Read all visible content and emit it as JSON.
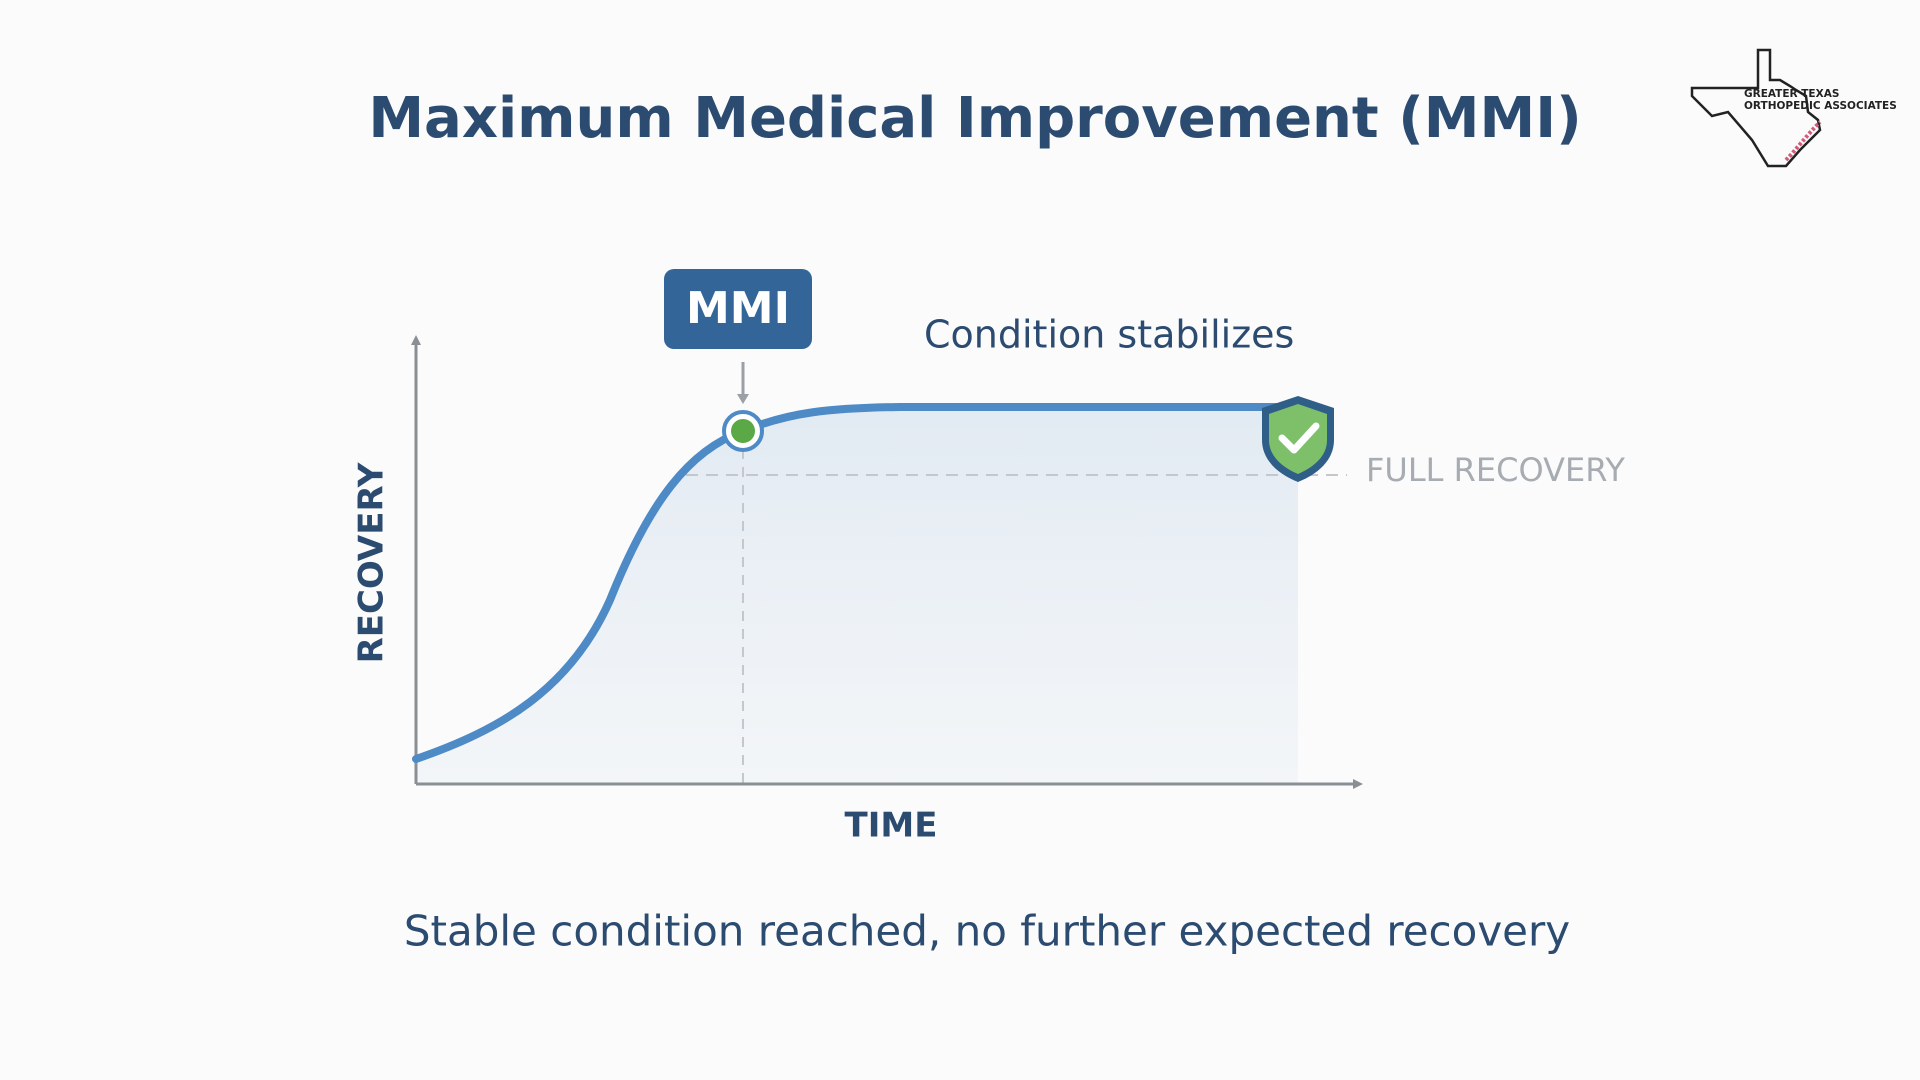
{
  "title": "Maximum Medical Improvement (MMI)",
  "logo": {
    "line1": "GREATER TEXAS",
    "line2": "ORTHOPEDIC ASSOCIATES"
  },
  "diagram": {
    "marker_label": "MMI",
    "annotation": "Condition stabilizes",
    "reference_label": "FULL RECOVERY",
    "y_axis_label": "RECOVERY",
    "x_axis_label": "TIME"
  },
  "caption": "Stable condition reached, no further expected recovery"
}
